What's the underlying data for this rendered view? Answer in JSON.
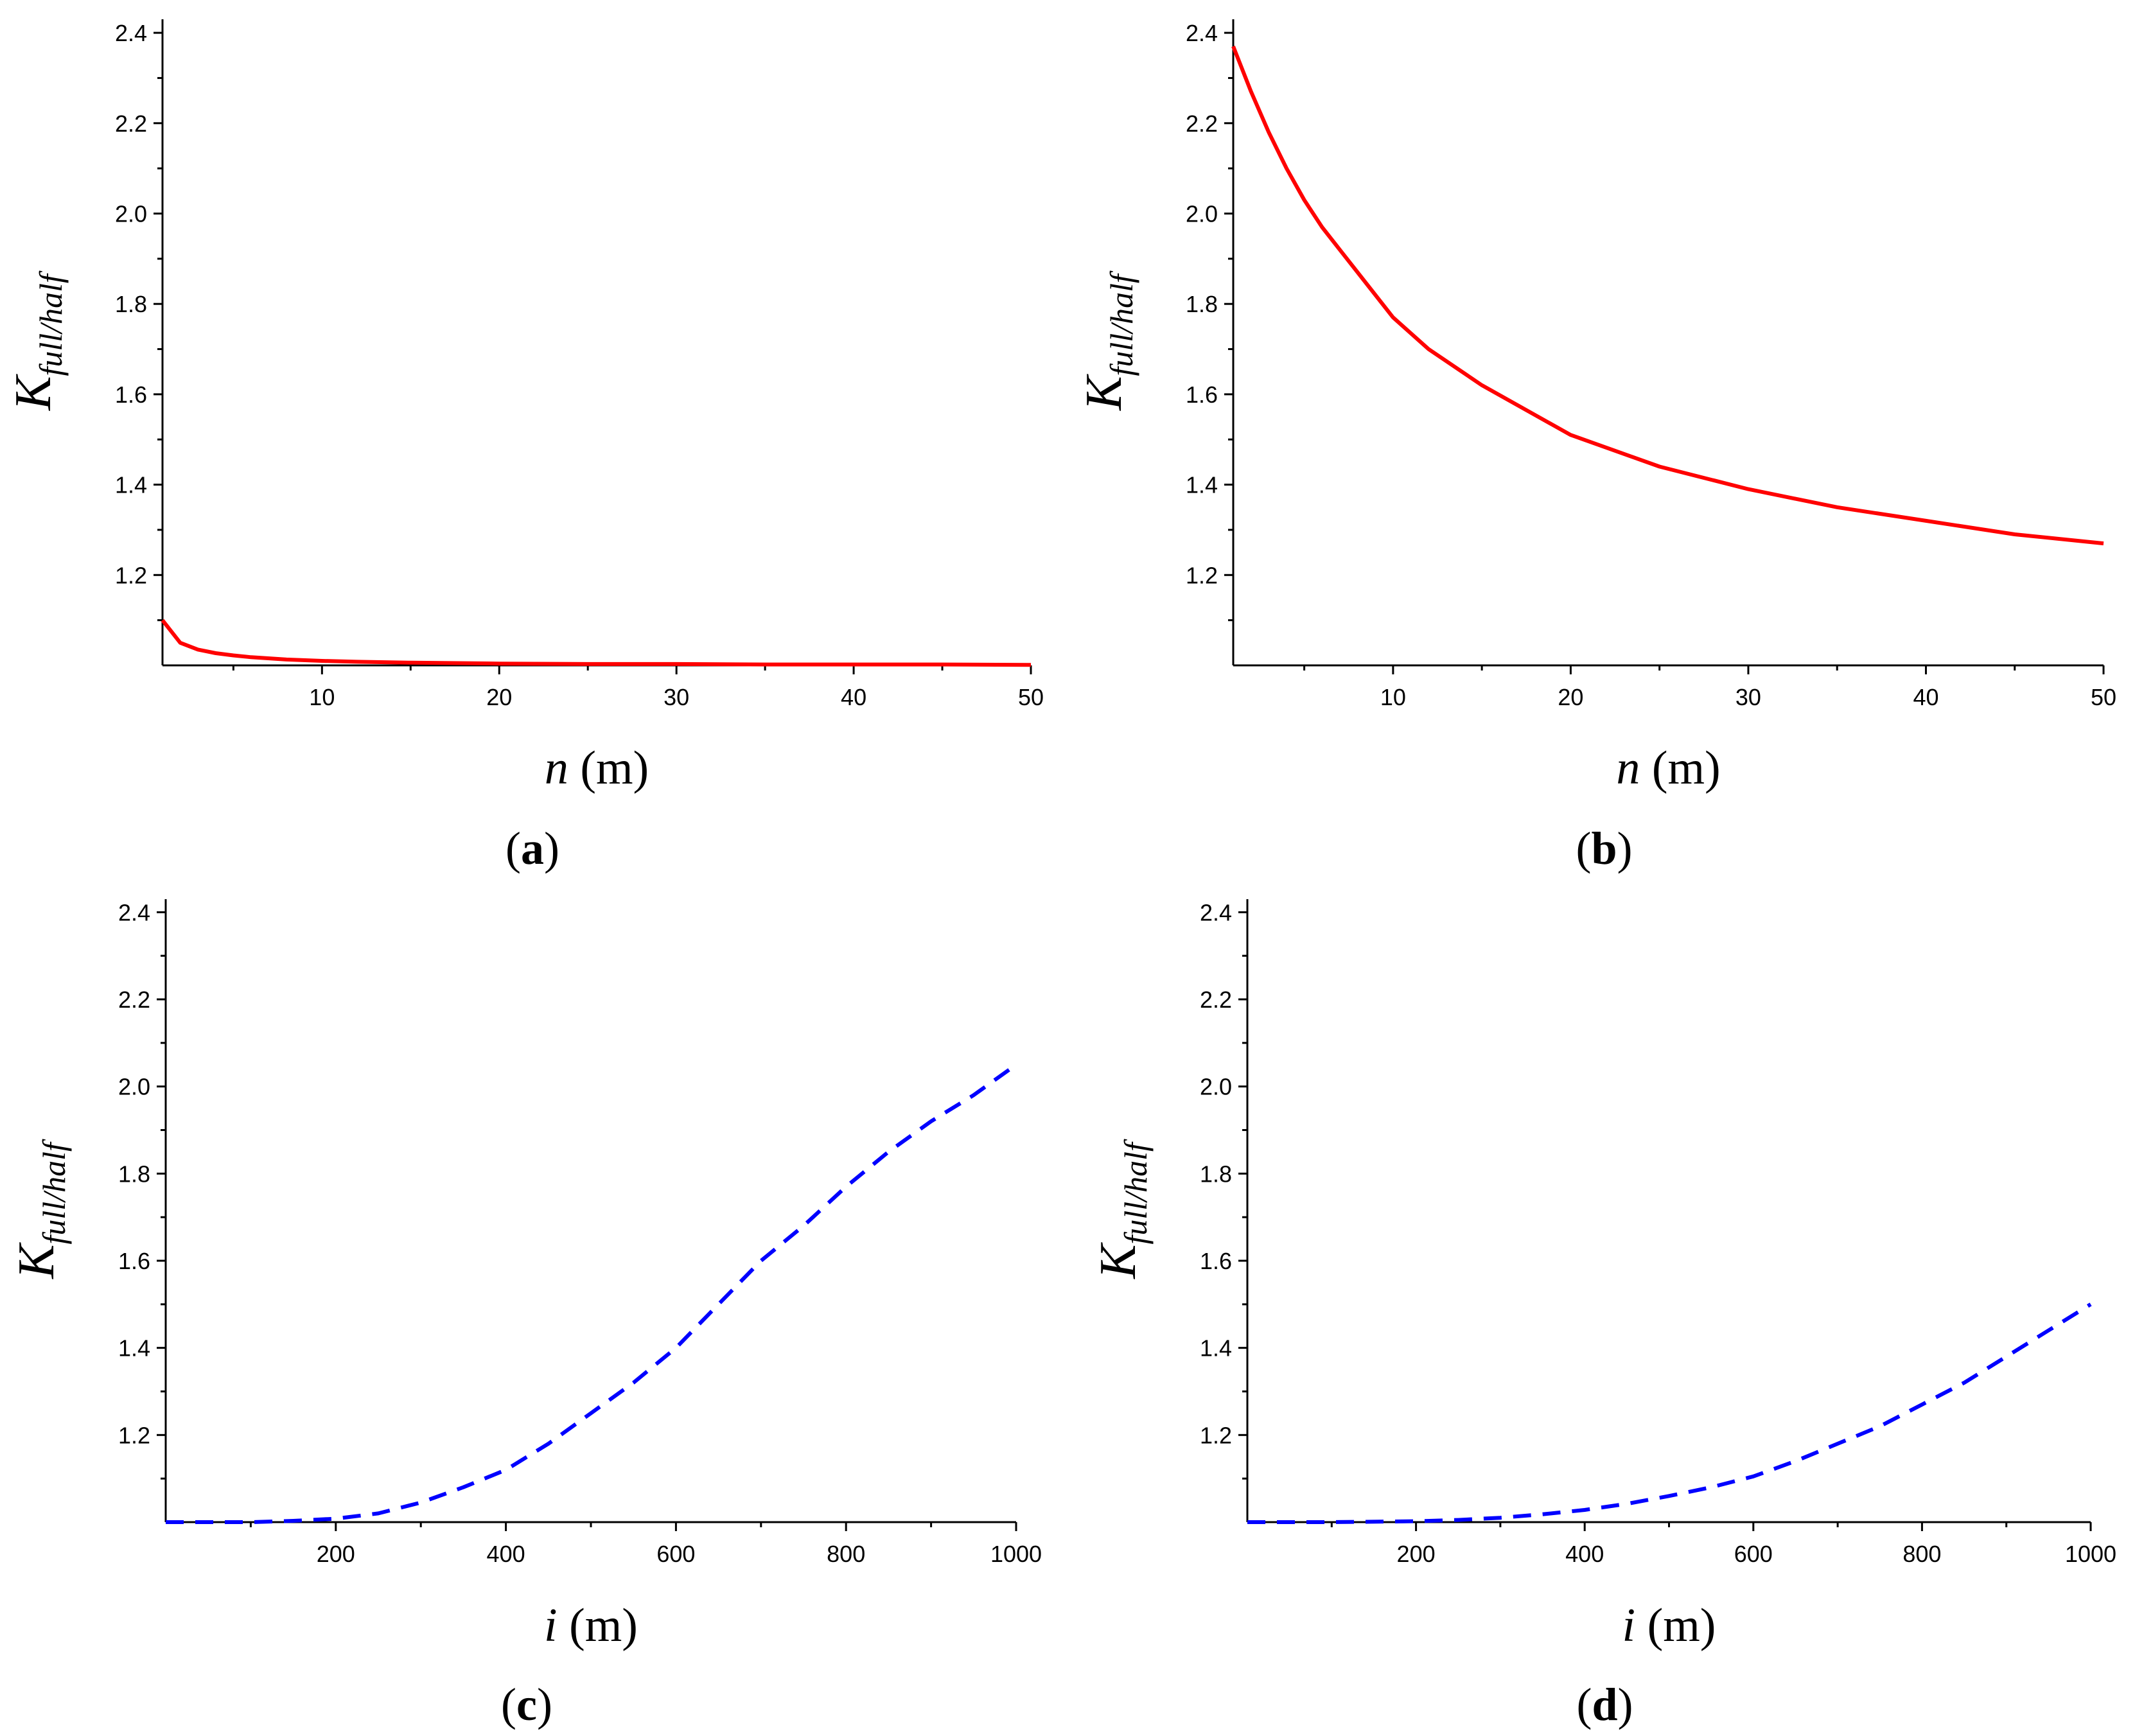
{
  "chart_data": [
    {
      "id": "a",
      "type": "line",
      "panel_label": "a",
      "xlabel": {
        "var": "n",
        "unit": "(m)"
      },
      "ylabel": {
        "main": "K",
        "sub": "full/half"
      },
      "xlim": [
        1,
        50
      ],
      "ylim": [
        1.0,
        2.43
      ],
      "xticks": [
        10,
        20,
        30,
        40,
        50
      ],
      "yticks": [
        1.2,
        1.4,
        1.6,
        1.8,
        2.0,
        2.2,
        2.4
      ],
      "series": [
        {
          "name": "K_full/half",
          "color": "#ff0000",
          "style": "solid",
          "x": [
            1,
            2,
            3,
            4,
            5,
            6,
            8,
            10,
            12,
            15,
            20,
            25,
            30,
            35,
            40,
            45,
            50
          ],
          "y": [
            1.1,
            1.05,
            1.035,
            1.027,
            1.022,
            1.018,
            1.013,
            1.01,
            1.008,
            1.006,
            1.004,
            1.003,
            1.003,
            1.002,
            1.002,
            1.002,
            1.001
          ]
        }
      ]
    },
    {
      "id": "b",
      "type": "line",
      "panel_label": "b",
      "xlabel": {
        "var": "n",
        "unit": "(m)"
      },
      "ylabel": {
        "main": "K",
        "sub": "full/half"
      },
      "xlim": [
        1,
        50
      ],
      "ylim": [
        1.0,
        2.43
      ],
      "xticks": [
        10,
        20,
        30,
        40,
        50
      ],
      "yticks": [
        1.2,
        1.4,
        1.6,
        1.8,
        2.0,
        2.2,
        2.4
      ],
      "series": [
        {
          "name": "K_full/half",
          "color": "#ff0000",
          "style": "solid",
          "x": [
            1,
            2,
            3,
            4,
            5,
            6,
            7,
            8,
            10,
            12,
            15,
            20,
            25,
            30,
            35,
            40,
            45,
            50
          ],
          "y": [
            2.37,
            2.27,
            2.18,
            2.1,
            2.03,
            1.97,
            1.92,
            1.87,
            1.77,
            1.7,
            1.62,
            1.51,
            1.44,
            1.39,
            1.35,
            1.32,
            1.29,
            1.27
          ]
        }
      ]
    },
    {
      "id": "c",
      "type": "line",
      "panel_label": "c",
      "xlabel": {
        "var": "i",
        "unit": "(m)"
      },
      "ylabel": {
        "main": "K",
        "sub": "full/half"
      },
      "xlim": [
        0,
        1000
      ],
      "ylim": [
        1.0,
        2.43
      ],
      "xticks": [
        200,
        400,
        600,
        800,
        1000
      ],
      "yticks": [
        1.2,
        1.4,
        1.6,
        1.8,
        2.0,
        2.2,
        2.4
      ],
      "series": [
        {
          "name": "K_full/half",
          "color": "#0000ff",
          "style": "dashed",
          "x": [
            0,
            100,
            150,
            200,
            250,
            300,
            350,
            400,
            450,
            500,
            550,
            600,
            650,
            700,
            750,
            800,
            850,
            900,
            950,
            1000
          ],
          "y": [
            1.0,
            1.0,
            1.003,
            1.008,
            1.02,
            1.045,
            1.08,
            1.12,
            1.18,
            1.25,
            1.32,
            1.4,
            1.5,
            1.6,
            1.68,
            1.77,
            1.85,
            1.92,
            1.98,
            2.05
          ]
        }
      ]
    },
    {
      "id": "d",
      "type": "line",
      "panel_label": "d",
      "xlabel": {
        "var": "i",
        "unit": "(m)"
      },
      "ylabel": {
        "main": "K",
        "sub": "full/half"
      },
      "xlim": [
        0,
        1000
      ],
      "ylim": [
        1.0,
        2.43
      ],
      "xticks": [
        200,
        400,
        600,
        800,
        1000
      ],
      "yticks": [
        1.2,
        1.4,
        1.6,
        1.8,
        2.0,
        2.2,
        2.4
      ],
      "series": [
        {
          "name": "K_full/half",
          "color": "#0000ff",
          "style": "dashed",
          "x": [
            0,
            100,
            200,
            250,
            300,
            350,
            400,
            450,
            500,
            550,
            600,
            650,
            700,
            750,
            800,
            850,
            900,
            950,
            1000
          ],
          "y": [
            1.0,
            1.0,
            1.002,
            1.005,
            1.01,
            1.018,
            1.028,
            1.042,
            1.06,
            1.08,
            1.105,
            1.14,
            1.18,
            1.22,
            1.27,
            1.32,
            1.38,
            1.44,
            1.5
          ]
        }
      ]
    }
  ]
}
